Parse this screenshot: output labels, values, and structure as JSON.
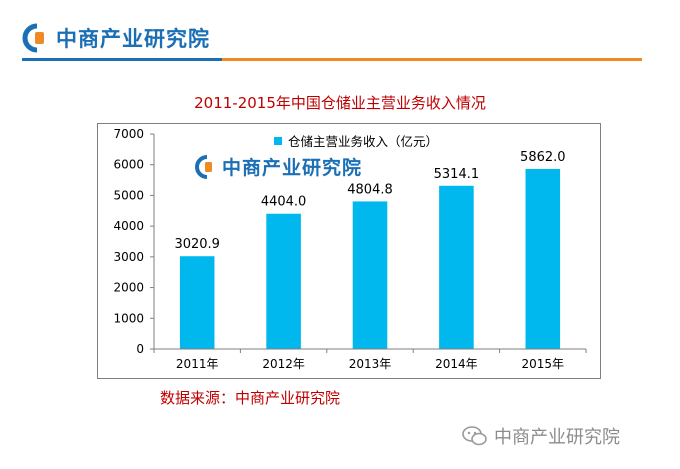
{
  "header": {
    "logo_text": "中商产业研究院"
  },
  "chart_data": {
    "type": "bar",
    "title": "2011-2015年中国仓储业主营业务收入情况",
    "categories": [
      "2011年",
      "2012年",
      "2013年",
      "2014年",
      "2015年"
    ],
    "series": [
      {
        "name": "仓储主营业务收入（亿元）",
        "values": [
          3020.9,
          4404.0,
          4804.8,
          5314.1,
          5862.0
        ]
      }
    ],
    "data_labels": [
      "3020.9",
      "4404.0",
      "4804.8",
      "5314.1",
      "5862.0"
    ],
    "ylim": [
      0,
      7000
    ],
    "yticks": [
      0,
      1000,
      2000,
      3000,
      4000,
      5000,
      6000,
      7000
    ],
    "grid": false,
    "legend": "top",
    "colors": {
      "bar": "#00b8ee"
    }
  },
  "chart_watermark": "中商产业研究院",
  "source_text": "数据来源：中商产业研究院",
  "footer": {
    "watermark_text": "中商产业研究院"
  },
  "colors": {
    "brand_blue": "#1a6fb5",
    "accent_orange": "#f08a24",
    "title_red": "#c00000"
  }
}
